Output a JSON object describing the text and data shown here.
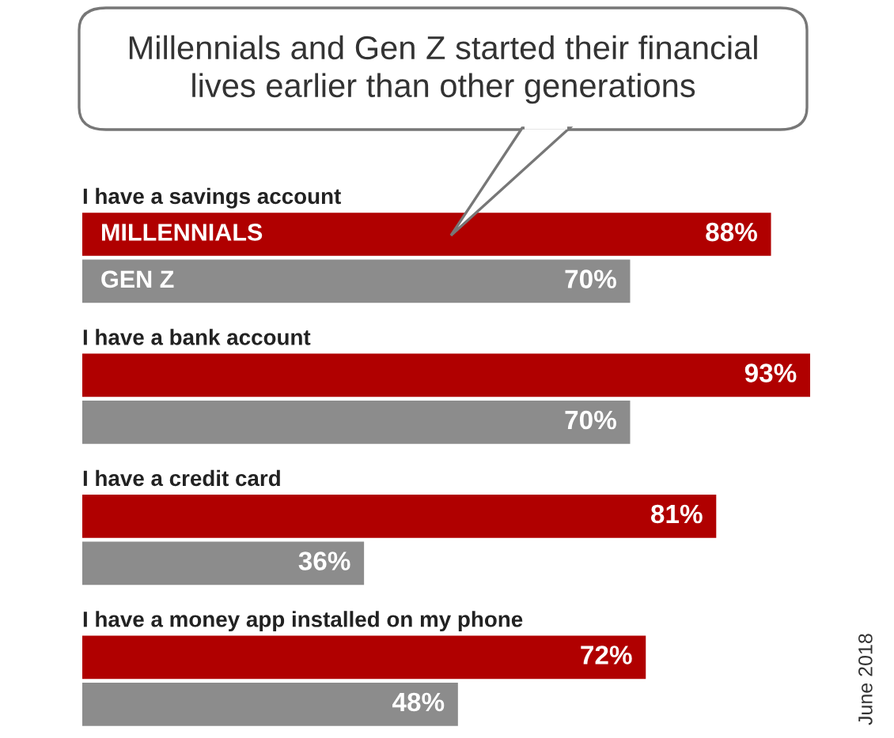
{
  "chart_data": {
    "type": "bar",
    "orientation": "horizontal",
    "title": "Millennials and Gen Z started their financial\nlives earlier than other generations",
    "categories": [
      "I have a savings account",
      "I have a bank account",
      "I have a credit card",
      "I have a money app installed on my phone"
    ],
    "series": [
      {
        "name": "MILLENNIALS",
        "color": "#b00000",
        "values": [
          88,
          93,
          81,
          72
        ],
        "value_labels": [
          "88%",
          "93%",
          "81%",
          "72%"
        ]
      },
      {
        "name": "GEN Z",
        "color": "#8c8c8c",
        "values": [
          70,
          70,
          36,
          48
        ],
        "value_labels": [
          "70%",
          "70%",
          "36%",
          "48%"
        ]
      }
    ],
    "legend": false,
    "annotations": [
      "June 2018"
    ]
  }
}
